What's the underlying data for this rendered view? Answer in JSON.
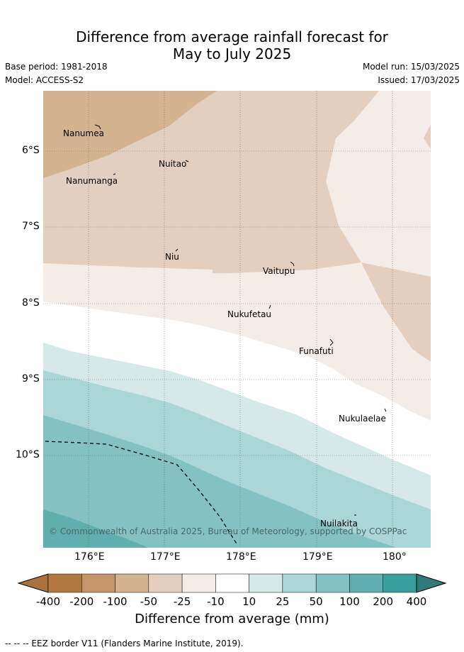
{
  "title": {
    "line1": "Difference from average rainfall forecast for",
    "line2": "May to July 2025"
  },
  "meta": {
    "base_period": "Base period: 1981-2018",
    "model": "Model: ACCESS-S2",
    "model_run": "Model run: 15/03/2025",
    "issued": "Issued: 17/03/2025"
  },
  "map": {
    "lat_labels": [
      "6°S",
      "7°S",
      "8°S",
      "9°S",
      "10°S"
    ],
    "lon_labels": [
      "176°E",
      "177°E",
      "178°E",
      "179°E",
      "180°"
    ],
    "places": [
      {
        "id": "nanumea",
        "name": "Nanumea"
      },
      {
        "id": "nuitao",
        "name": "Nuitao"
      },
      {
        "id": "nanumanga",
        "name": "Nanumanga"
      },
      {
        "id": "niu",
        "name": "Niu"
      },
      {
        "id": "vaitupu",
        "name": "Vaitupu"
      },
      {
        "id": "nukufetau",
        "name": "Nukufetau"
      },
      {
        "id": "funafuti",
        "name": "Funafuti"
      },
      {
        "id": "nukulaelae",
        "name": "Nukulaelae"
      },
      {
        "id": "nuilakita",
        "name": "Nuilakita"
      }
    ],
    "copyright": "© Commonwealth of Australia 2025, Bureau of Meteorology, supported by COSPPac"
  },
  "colorbar": {
    "title": "Difference from average (mm)",
    "ticks": [
      "-400",
      "-200",
      "-100",
      "-50",
      "-25",
      "-10",
      "10",
      "25",
      "50",
      "100",
      "200",
      "400"
    ],
    "colors": [
      "#a8733a",
      "#b1793f",
      "#c4966a",
      "#d4b391",
      "#e3cfbd",
      "#f4ece7",
      "#ffffff",
      "#d5e9e8",
      "#abd6d6",
      "#84c2c1",
      "#5eafad",
      "#389f9c",
      "#2f7b78"
    ]
  },
  "footnote": "-- --  -- EEZ border V11 (Flanders Marine Institute, 2019)."
}
